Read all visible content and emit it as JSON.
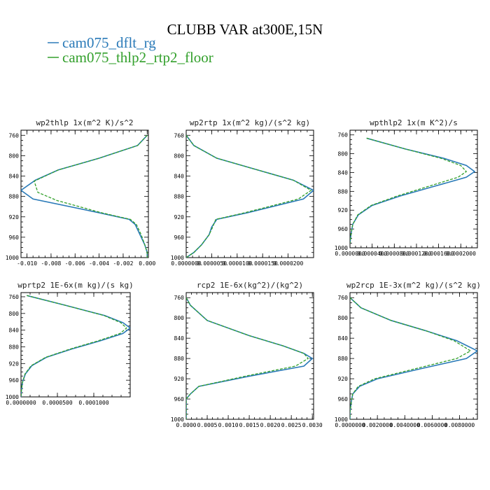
{
  "figure": {
    "title": "CLUBB VAR at300E,15N",
    "legend": [
      {
        "label": "cam075_dflt_rg",
        "color": "#2a7ab8"
      },
      {
        "label": "cam075_thlp2_rtp2_floor",
        "color": "#33a02c"
      }
    ]
  },
  "chart_data": [
    {
      "type": "line",
      "title": "wp2thlp   1x(m^2 K)/s^2",
      "ylim": [
        1000,
        750
      ],
      "y_ticks": [
        760,
        800,
        840,
        880,
        920,
        960,
        1000
      ],
      "xlim": [
        -0.0105,
        0.0001
      ],
      "x_ticks": [
        -0.01,
        -0.008,
        -0.006,
        -0.004,
        -0.002,
        0.0
      ],
      "x_tick_labels": [
        "-0.010",
        "-0.008",
        "-0.006",
        "-0.004",
        "-0.002",
        "0.000"
      ],
      "series": [
        {
          "name": "cam075_dflt_rg",
          "y": [
            760,
            780,
            805,
            828,
            848,
            868,
            885,
            912,
            925,
            935,
            955,
            975,
            990,
            1000
          ],
          "values": [
            0.0,
            -0.0008,
            -0.004,
            -0.0074,
            -0.0093,
            -0.0105,
            -0.0095,
            -0.004,
            -0.0015,
            -0.001,
            -0.0006,
            -0.0002,
            0.0,
            0.0
          ]
        },
        {
          "name": "cam075_thlp2_rtp2_floor",
          "y": [
            760,
            780,
            805,
            828,
            850,
            872,
            888,
            912,
            925,
            935,
            955,
            975,
            990,
            1000
          ],
          "values": [
            0.0,
            -0.0008,
            -0.004,
            -0.0074,
            -0.0094,
            -0.0091,
            -0.0075,
            -0.0038,
            -0.0014,
            -0.0009,
            -0.0005,
            -0.0002,
            0.0,
            0.0
          ]
        }
      ]
    },
    {
      "type": "line",
      "title": "wp2rtp   1x(m^2 kg)/(s^2 kg)",
      "ylim": [
        1000,
        750
      ],
      "y_ticks": [
        760,
        800,
        840,
        880,
        920,
        960,
        1000
      ],
      "xlim": [
        0,
        2.5e-05
      ],
      "x_ticks": [
        0,
        5e-06,
        1e-05,
        1.5e-05,
        2e-05
      ],
      "x_tick_labels": [
        "0.0000000",
        "0.0000050",
        "0.0000100",
        "0.0000150",
        "0.0000200"
      ],
      "series": [
        {
          "name": "cam075_dflt_rg",
          "y": [
            760,
            780,
            805,
            828,
            848,
            868,
            885,
            912,
            925,
            940,
            955,
            975,
            990,
            1000
          ],
          "values": [
            0.0,
            1.5e-06,
            6e-06,
            1.4e-05,
            2.1e-05,
            2.5e-05,
            2.3e-05,
            1.2e-05,
            6e-06,
            5e-06,
            4.5e-06,
            3e-06,
            1.5e-06,
            0.0
          ]
        },
        {
          "name": "cam075_thlp2_rtp2_floor",
          "y": [
            760,
            780,
            805,
            828,
            848,
            868,
            885,
            912,
            925,
            940,
            955,
            975,
            990,
            1000
          ],
          "values": [
            0.0,
            1.5e-06,
            6e-06,
            1.4e-05,
            2.1e-05,
            2.45e-05,
            2.2e-05,
            1.15e-05,
            5.8e-06,
            5.2e-06,
            4.5e-06,
            3e-06,
            1.5e-06,
            0.0
          ]
        }
      ]
    },
    {
      "type": "line",
      "title": "wpthlp2   1x(m K^2)/s",
      "ylim": [
        1000,
        750
      ],
      "y_ticks": [
        760,
        800,
        840,
        880,
        920,
        960,
        1000
      ],
      "xlim": [
        0,
        0.00023
      ],
      "x_ticks": [
        0,
        4e-05,
        8e-05,
        0.00012,
        0.00016,
        0.0002
      ],
      "x_tick_labels": [
        "0.0000000",
        "0.0000400",
        "0.0000800",
        "0.0001200",
        "0.0001600",
        "0.0002000"
      ],
      "series": [
        {
          "name": "cam075_dflt_rg",
          "y": [
            767,
            790,
            810,
            825,
            838,
            850,
            870,
            890,
            910,
            930,
            950,
            970,
            990
          ],
          "values": [
            3e-05,
            0.0001,
            0.00017,
            0.00021,
            0.000225,
            0.00021,
            0.00015,
            9e-05,
            4e-05,
            1.5e-05,
            5e-06,
            2e-06,
            0.0
          ]
        },
        {
          "name": "cam075_thlp2_rtp2_floor",
          "y": [
            767,
            790,
            810,
            825,
            838,
            850,
            870,
            890,
            910,
            930,
            950,
            970,
            990
          ],
          "values": [
            3e-05,
            0.0001,
            0.000165,
            0.0002,
            0.00021,
            0.000195,
            0.00014,
            8.5e-05,
            3.8e-05,
            1.4e-05,
            5e-06,
            2e-06,
            0.0
          ]
        }
      ]
    },
    {
      "type": "line",
      "title": "wprtp2   1E-6x(m kg)/(s kg)",
      "ylim": [
        1000,
        750
      ],
      "y_ticks": [
        760,
        800,
        840,
        880,
        920,
        960,
        1000
      ],
      "xlim": [
        0,
        0.00015
      ],
      "x_ticks": [
        0,
        5e-05,
        0.0001
      ],
      "x_tick_labels": [
        "0.0000000",
        "0.0000500",
        "0.0001000"
      ],
      "series": [
        {
          "name": "cam075_dflt_rg",
          "y": [
            757,
            780,
            805,
            822,
            835,
            848,
            865,
            885,
            905,
            925,
            945,
            965,
            985,
            1000
          ],
          "values": [
            8e-06,
            6e-05,
            0.000115,
            0.00014,
            0.00015,
            0.00014,
            0.00011,
            7e-05,
            3.5e-05,
            1.5e-05,
            6e-06,
            2e-06,
            5e-07,
            0.0
          ]
        },
        {
          "name": "cam075_thlp2_rtp2_floor",
          "y": [
            757,
            780,
            805,
            822,
            835,
            848,
            865,
            885,
            905,
            925,
            945,
            965,
            985,
            1000
          ],
          "values": [
            8e-06,
            6e-05,
            0.000114,
            0.000137,
            0.000145,
            0.000136,
            0.000107,
            6.8e-05,
            3.4e-05,
            1.4e-05,
            5.5e-06,
            2e-06,
            5e-07,
            0.0
          ]
        }
      ]
    },
    {
      "type": "line",
      "title": "rcp2   1E-6x(kg^2)/(kg^2)",
      "ylim": [
        1000,
        750
      ],
      "y_ticks": [
        760,
        800,
        840,
        880,
        920,
        960,
        1000
      ],
      "xlim": [
        0,
        0.00303
      ],
      "x_ticks": [
        0,
        0.0005,
        0.001,
        0.0015,
        0.002,
        0.0025,
        0.003
      ],
      "x_tick_labels": [
        "0.0000",
        "0.0005",
        "0.0010",
        "0.0015",
        "0.0020",
        "0.0025",
        "0.0030"
      ],
      "series": [
        {
          "name": "cam075_dflt_rg",
          "y": [
            760,
            775,
            805,
            835,
            855,
            870,
            880,
            895,
            915,
            935,
            950,
            960,
            1000
          ],
          "values": [
            0.0,
            0.0001,
            0.0005,
            0.0015,
            0.0023,
            0.0028,
            0.003,
            0.0028,
            0.0015,
            0.0003,
            0.0001,
            0.0,
            0.0
          ]
        },
        {
          "name": "cam075_thlp2_rtp2_floor",
          "y": [
            760,
            775,
            805,
            835,
            855,
            870,
            880,
            895,
            915,
            935,
            950,
            960,
            1000
          ],
          "values": [
            0.0,
            0.0001,
            0.0005,
            0.0015,
            0.0023,
            0.0028,
            0.0029,
            0.0026,
            0.0014,
            0.0003,
            0.0001,
            0.0,
            0.0
          ]
        }
      ]
    },
    {
      "type": "line",
      "title": "wp2rcp   1E-3x(m^2 kg)/(s^2 kg)",
      "ylim": [
        1000,
        750
      ],
      "y_ticks": [
        760,
        800,
        840,
        880,
        920,
        960,
        1000
      ],
      "xlim": [
        0,
        0.0093
      ],
      "x_ticks": [
        0,
        0.002,
        0.004,
        0.006,
        0.008
      ],
      "x_tick_labels": [
        "0.0000000",
        "0.0020000",
        "0.0040000",
        "0.0060000",
        "0.0080000"
      ],
      "series": [
        {
          "name": "cam075_dflt_rg",
          "y": [
            760,
            780,
            805,
            825,
            845,
            865,
            880,
            900,
            920,
            935,
            950,
            965,
            985,
            1000
          ],
          "values": [
            0.0,
            0.0008,
            0.003,
            0.0055,
            0.0078,
            0.0093,
            0.0085,
            0.0052,
            0.002,
            0.0007,
            0.0002,
            0.0001,
            0.0,
            0.0
          ]
        },
        {
          "name": "cam075_thlp2_rtp2_floor",
          "y": [
            760,
            780,
            805,
            825,
            845,
            865,
            880,
            900,
            920,
            935,
            950,
            965,
            985,
            1000
          ],
          "values": [
            0.0,
            0.0008,
            0.003,
            0.0055,
            0.0076,
            0.0088,
            0.0078,
            0.0048,
            0.0018,
            0.0006,
            0.0002,
            0.0001,
            0.0,
            0.0
          ]
        }
      ]
    }
  ]
}
